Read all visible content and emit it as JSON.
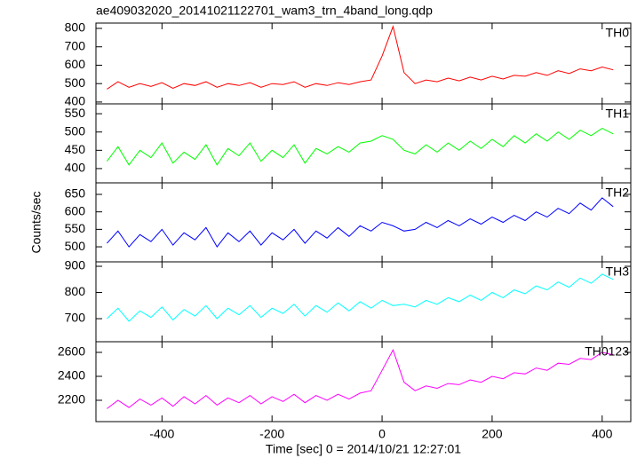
{
  "chart_data": [
    {
      "type": "line",
      "title": "ae409032020_20141021122701_wam3_trn_4band_long.qdp",
      "x": [
        -500,
        -480,
        -460,
        -440,
        -420,
        -400,
        -380,
        -360,
        -340,
        -320,
        -300,
        -280,
        -260,
        -240,
        -220,
        -200,
        -180,
        -160,
        -140,
        -120,
        -100,
        -80,
        -60,
        -40,
        -20,
        0,
        20,
        40,
        60,
        80,
        100,
        120,
        140,
        160,
        180,
        200,
        220,
        240,
        260,
        280,
        300,
        320,
        340,
        360,
        380,
        400,
        420
      ],
      "xlim": [
        -520,
        452
      ],
      "ylim": [
        390,
        829
      ],
      "yticks": [
        400,
        500,
        600,
        700,
        800
      ],
      "series": [
        {
          "name": "TH0",
          "color": "#ff0000",
          "values": [
            470,
            510,
            480,
            500,
            485,
            505,
            475,
            500,
            490,
            510,
            480,
            500,
            490,
            505,
            480,
            500,
            495,
            510,
            480,
            500,
            490,
            505,
            495,
            510,
            520,
            650,
            810,
            560,
            500,
            520,
            510,
            530,
            515,
            535,
            520,
            540,
            525,
            545,
            540,
            560,
            545,
            570,
            555,
            580,
            570,
            590,
            575
          ]
        }
      ]
    },
    {
      "type": "line",
      "x": [
        -500,
        -480,
        -460,
        -440,
        -420,
        -400,
        -380,
        -360,
        -340,
        -320,
        -300,
        -280,
        -260,
        -240,
        -220,
        -200,
        -180,
        -160,
        -140,
        -120,
        -100,
        -80,
        -60,
        -40,
        -20,
        0,
        20,
        40,
        60,
        80,
        100,
        120,
        140,
        160,
        180,
        200,
        220,
        240,
        260,
        280,
        300,
        320,
        340,
        360,
        380,
        400,
        420
      ],
      "xlim": [
        -520,
        452
      ],
      "ylim": [
        361,
        577
      ],
      "yticks": [
        400,
        450,
        500,
        550
      ],
      "series": [
        {
          "name": "TH1",
          "color": "#00ff00",
          "values": [
            420,
            460,
            410,
            450,
            430,
            470,
            415,
            445,
            425,
            465,
            410,
            455,
            435,
            470,
            420,
            450,
            430,
            465,
            415,
            455,
            440,
            460,
            445,
            470,
            475,
            490,
            480,
            450,
            440,
            465,
            445,
            470,
            450,
            475,
            455,
            480,
            460,
            490,
            470,
            495,
            475,
            500,
            480,
            505,
            490,
            510,
            495
          ]
        }
      ]
    },
    {
      "type": "line",
      "ylabel": "Counts/sec",
      "x": [
        -500,
        -480,
        -460,
        -440,
        -420,
        -400,
        -380,
        -360,
        -340,
        -320,
        -300,
        -280,
        -260,
        -240,
        -220,
        -200,
        -180,
        -160,
        -140,
        -120,
        -100,
        -80,
        -60,
        -40,
        -20,
        0,
        20,
        40,
        60,
        80,
        100,
        120,
        140,
        160,
        180,
        200,
        220,
        240,
        260,
        280,
        300,
        320,
        340,
        360,
        380,
        400,
        420
      ],
      "xlim": [
        -520,
        452
      ],
      "ylim": [
        457,
        683
      ],
      "yticks": [
        500,
        550,
        600,
        650
      ],
      "series": [
        {
          "name": "TH2",
          "color": "#0000ff",
          "values": [
            510,
            545,
            500,
            535,
            515,
            550,
            505,
            540,
            520,
            555,
            500,
            540,
            515,
            545,
            505,
            540,
            520,
            550,
            510,
            545,
            525,
            555,
            530,
            560,
            545,
            570,
            560,
            545,
            550,
            570,
            555,
            575,
            560,
            580,
            565,
            585,
            570,
            590,
            575,
            600,
            585,
            610,
            595,
            625,
            605,
            640,
            615
          ]
        }
      ]
    },
    {
      "type": "line",
      "x": [
        -500,
        -480,
        -460,
        -440,
        -420,
        -400,
        -380,
        -360,
        -340,
        -320,
        -300,
        -280,
        -260,
        -240,
        -220,
        -200,
        -180,
        -160,
        -140,
        -120,
        -100,
        -80,
        -60,
        -40,
        -20,
        0,
        20,
        40,
        60,
        80,
        100,
        120,
        140,
        160,
        180,
        200,
        220,
        240,
        260,
        280,
        300,
        320,
        340,
        360,
        380,
        400,
        420
      ],
      "xlim": [
        -520,
        452
      ],
      "ylim": [
        612,
        917
      ],
      "yticks": [
        700,
        800,
        900
      ],
      "series": [
        {
          "name": "TH3",
          "color": "#00ffff",
          "values": [
            700,
            740,
            690,
            730,
            705,
            745,
            695,
            735,
            710,
            750,
            700,
            740,
            715,
            750,
            705,
            740,
            720,
            755,
            710,
            750,
            725,
            760,
            730,
            765,
            740,
            770,
            750,
            755,
            745,
            770,
            755,
            780,
            765,
            790,
            770,
            800,
            780,
            810,
            795,
            825,
            810,
            840,
            820,
            855,
            835,
            870,
            850
          ]
        }
      ]
    },
    {
      "type": "line",
      "xlabel": "Time [sec] 0 = 2014/10/21 12:27:01",
      "x": [
        -500,
        -480,
        -460,
        -440,
        -420,
        -400,
        -380,
        -360,
        -340,
        -320,
        -300,
        -280,
        -260,
        -240,
        -220,
        -200,
        -180,
        -160,
        -140,
        -120,
        -100,
        -80,
        -60,
        -40,
        -20,
        0,
        20,
        40,
        60,
        80,
        100,
        120,
        140,
        160,
        180,
        200,
        220,
        240,
        260,
        280,
        300,
        320,
        340,
        360,
        380,
        400,
        420
      ],
      "xlim": [
        -520,
        452
      ],
      "xticks": [
        -400,
        -200,
        0,
        200,
        400
      ],
      "ylim": [
        2022,
        2689
      ],
      "yticks": [
        2200,
        2400,
        2600
      ],
      "series": [
        {
          "name": "TH0123",
          "color": "#ff00ff",
          "values": [
            2130,
            2200,
            2140,
            2210,
            2160,
            2220,
            2150,
            2230,
            2170,
            2240,
            2160,
            2220,
            2180,
            2240,
            2170,
            2230,
            2190,
            2250,
            2180,
            2240,
            2200,
            2250,
            2210,
            2260,
            2280,
            2450,
            2620,
            2350,
            2280,
            2320,
            2300,
            2340,
            2330,
            2370,
            2350,
            2400,
            2380,
            2430,
            2420,
            2470,
            2450,
            2510,
            2500,
            2550,
            2540,
            2600,
            2580
          ]
        }
      ]
    }
  ]
}
